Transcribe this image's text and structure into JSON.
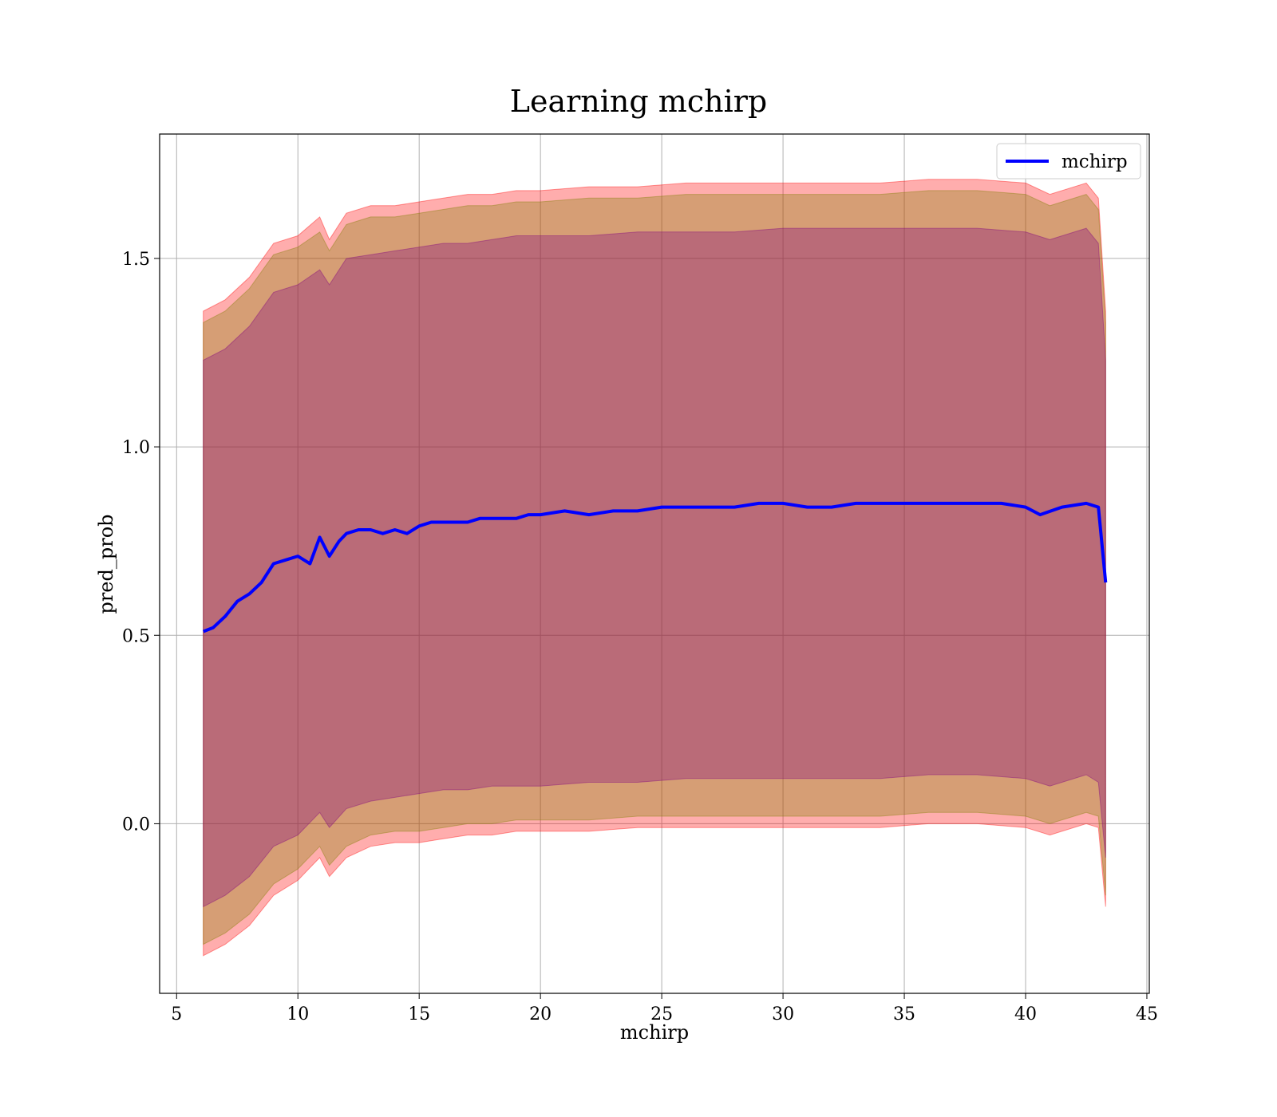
{
  "chart_data": {
    "type": "line",
    "title": "Learning mchirp",
    "xlabel": "mchirp",
    "ylabel": "pred_prob",
    "xlim": [
      4.3,
      45.1
    ],
    "ylim": [
      -0.45,
      1.83
    ],
    "xticks": [
      5,
      10,
      15,
      20,
      25,
      30,
      35,
      40,
      45
    ],
    "yticks": [
      0.0,
      0.5,
      1.0,
      1.5
    ],
    "ytick_labels": [
      "0.0",
      "0.5",
      "1.0",
      "1.5"
    ],
    "grid": true,
    "legend_position": "top-right",
    "series": [
      {
        "name": "mchirp",
        "color": "#0000ff",
        "x": [
          6.1,
          6.5,
          7.0,
          7.5,
          8.0,
          8.5,
          9.0,
          9.5,
          10.0,
          10.5,
          10.9,
          11.3,
          11.7,
          12.0,
          12.5,
          13.0,
          13.5,
          14.0,
          14.5,
          15.0,
          15.5,
          16.0,
          16.5,
          17.0,
          17.5,
          18.0,
          18.5,
          19.0,
          19.5,
          20.0,
          21.0,
          22.0,
          23.0,
          24.0,
          25.0,
          26.0,
          27.0,
          28.0,
          29.0,
          30.0,
          31.0,
          32.0,
          33.0,
          34.0,
          35.0,
          36.0,
          37.0,
          38.0,
          39.0,
          40.0,
          40.6,
          41.5,
          42.5,
          43.0,
          43.3
        ],
        "values": [
          0.51,
          0.52,
          0.55,
          0.59,
          0.61,
          0.64,
          0.69,
          0.7,
          0.71,
          0.69,
          0.76,
          0.71,
          0.75,
          0.77,
          0.78,
          0.78,
          0.77,
          0.78,
          0.77,
          0.79,
          0.8,
          0.8,
          0.8,
          0.8,
          0.81,
          0.81,
          0.81,
          0.81,
          0.82,
          0.82,
          0.83,
          0.82,
          0.83,
          0.83,
          0.84,
          0.84,
          0.84,
          0.84,
          0.85,
          0.85,
          0.84,
          0.84,
          0.85,
          0.85,
          0.85,
          0.85,
          0.85,
          0.85,
          0.85,
          0.84,
          0.82,
          0.84,
          0.85,
          0.84,
          0.64
        ]
      }
    ],
    "bands": [
      {
        "color": "#ff0000",
        "opacity": 0.32,
        "x": [
          6.1,
          7.0,
          8.0,
          9.0,
          10.0,
          10.9,
          11.3,
          12.0,
          13.0,
          14.0,
          15.0,
          16.0,
          17.0,
          18.0,
          19.0,
          20.0,
          22.0,
          24.0,
          26.0,
          28.0,
          30.0,
          32.0,
          34.0,
          36.0,
          38.0,
          40.0,
          41.0,
          42.5,
          43.0,
          43.3
        ],
        "upper": [
          1.36,
          1.39,
          1.45,
          1.54,
          1.56,
          1.61,
          1.55,
          1.62,
          1.64,
          1.64,
          1.65,
          1.66,
          1.67,
          1.67,
          1.68,
          1.68,
          1.69,
          1.69,
          1.7,
          1.7,
          1.7,
          1.7,
          1.7,
          1.71,
          1.71,
          1.7,
          1.67,
          1.7,
          1.66,
          1.36
        ],
        "lower": [
          -0.35,
          -0.32,
          -0.27,
          -0.19,
          -0.15,
          -0.09,
          -0.14,
          -0.09,
          -0.06,
          -0.05,
          -0.05,
          -0.04,
          -0.03,
          -0.03,
          -0.02,
          -0.02,
          -0.02,
          -0.01,
          -0.01,
          -0.01,
          -0.01,
          -0.01,
          -0.01,
          0.0,
          0.0,
          -0.01,
          -0.03,
          0.0,
          -0.01,
          -0.22
        ]
      },
      {
        "color": "#808000",
        "opacity": 0.32,
        "x": [
          6.1,
          7.0,
          8.0,
          9.0,
          10.0,
          10.9,
          11.3,
          12.0,
          13.0,
          14.0,
          15.0,
          16.0,
          17.0,
          18.0,
          19.0,
          20.0,
          22.0,
          24.0,
          26.0,
          28.0,
          30.0,
          32.0,
          34.0,
          36.0,
          38.0,
          40.0,
          41.0,
          42.5,
          43.0,
          43.3
        ],
        "upper": [
          1.33,
          1.36,
          1.42,
          1.51,
          1.53,
          1.57,
          1.52,
          1.59,
          1.61,
          1.61,
          1.62,
          1.63,
          1.64,
          1.64,
          1.65,
          1.65,
          1.66,
          1.66,
          1.67,
          1.67,
          1.67,
          1.67,
          1.67,
          1.68,
          1.68,
          1.67,
          1.64,
          1.67,
          1.63,
          1.33
        ],
        "lower": [
          -0.32,
          -0.29,
          -0.24,
          -0.16,
          -0.12,
          -0.06,
          -0.11,
          -0.06,
          -0.03,
          -0.02,
          -0.02,
          -0.01,
          0.0,
          0.0,
          0.01,
          0.01,
          0.01,
          0.02,
          0.02,
          0.02,
          0.02,
          0.02,
          0.02,
          0.03,
          0.03,
          0.02,
          0.0,
          0.03,
          0.02,
          -0.19
        ]
      },
      {
        "color": "#800080",
        "opacity": 0.32,
        "x": [
          6.1,
          7.0,
          8.0,
          9.0,
          10.0,
          10.9,
          11.3,
          12.0,
          13.0,
          14.0,
          15.0,
          16.0,
          17.0,
          18.0,
          19.0,
          20.0,
          22.0,
          24.0,
          26.0,
          28.0,
          30.0,
          32.0,
          34.0,
          36.0,
          38.0,
          40.0,
          41.0,
          42.5,
          43.0,
          43.3
        ],
        "upper": [
          1.23,
          1.26,
          1.32,
          1.41,
          1.43,
          1.47,
          1.43,
          1.5,
          1.51,
          1.52,
          1.53,
          1.54,
          1.54,
          1.55,
          1.56,
          1.56,
          1.56,
          1.57,
          1.57,
          1.57,
          1.58,
          1.58,
          1.58,
          1.58,
          1.58,
          1.57,
          1.55,
          1.58,
          1.54,
          1.23
        ],
        "lower": [
          -0.22,
          -0.19,
          -0.14,
          -0.06,
          -0.03,
          0.03,
          -0.01,
          0.04,
          0.06,
          0.07,
          0.08,
          0.09,
          0.09,
          0.1,
          0.1,
          0.1,
          0.11,
          0.11,
          0.12,
          0.12,
          0.12,
          0.12,
          0.12,
          0.13,
          0.13,
          0.12,
          0.1,
          0.13,
          0.11,
          -0.09
        ]
      }
    ]
  }
}
